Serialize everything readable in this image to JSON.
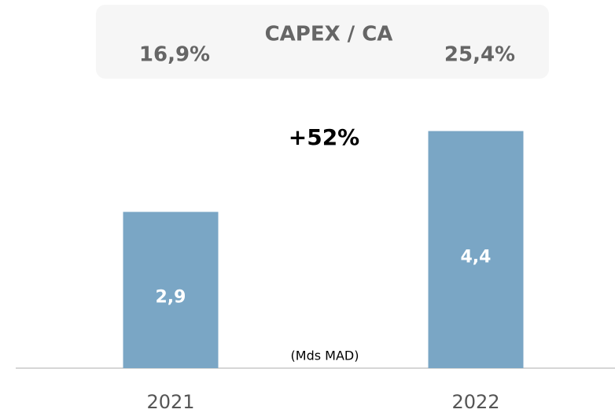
{
  "chart_data": {
    "type": "bar",
    "categories": [
      "2021",
      "2022"
    ],
    "values": [
      2.9,
      4.4
    ],
    "value_labels": [
      "2,9",
      "4,4"
    ],
    "color": "#7aa6c5",
    "ylim": [
      0,
      5
    ],
    "annotation": "+52%",
    "unit": "(Mds MAD)",
    "ratio_box": {
      "title": "CAPEX / CA",
      "values": [
        16.9,
        25.4
      ],
      "value_labels": [
        "16,9%",
        "25,4%"
      ]
    }
  }
}
